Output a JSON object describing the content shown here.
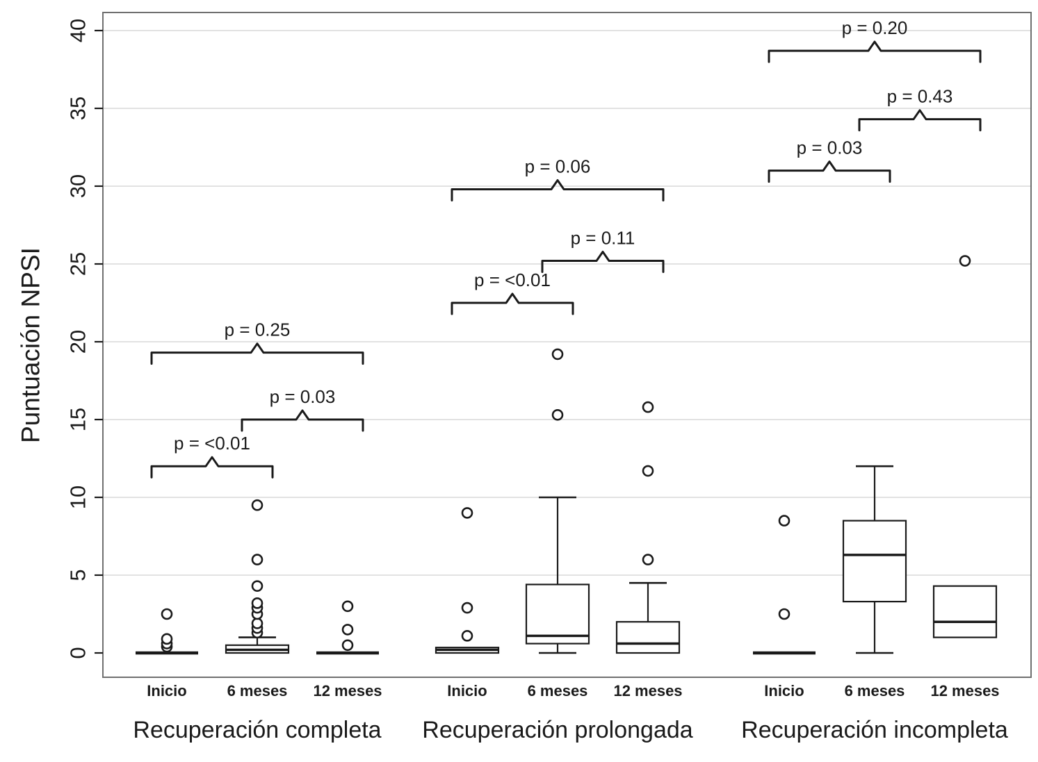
{
  "figure": {
    "ylabel": "Puntuación NPSI"
  },
  "chart_data": {
    "type": "boxplot",
    "title": "",
    "xlabel": "",
    "ylabel": "Puntuación NPSI",
    "ylim": [
      0,
      40
    ],
    "yticks": [
      "0",
      "5",
      "10",
      "15",
      "20",
      "25",
      "30",
      "35",
      "40"
    ],
    "grid": true,
    "legend": "none",
    "groups": [
      {
        "label": "Recuperación completa",
        "boxes": [
          {
            "timepoint": "Inicio",
            "q1": 0,
            "median": 0,
            "q3": 0,
            "whisker_low": 0,
            "whisker_high": 0,
            "outliers": [
              0.4,
              0.6,
              0.9,
              2.5
            ]
          },
          {
            "timepoint": "6 meses",
            "q1": 0,
            "median": 0.2,
            "q3": 0.5,
            "whisker_low": 0,
            "whisker_high": 1.0,
            "outliers": [
              1.3,
              1.6,
              1.9,
              2.5,
              2.9,
              3.2,
              4.3,
              6.0,
              9.5
            ]
          },
          {
            "timepoint": "12 meses",
            "q1": 0,
            "median": 0,
            "q3": 0,
            "whisker_low": 0,
            "whisker_high": 0,
            "outliers": [
              0.5,
              1.5,
              3.0
            ]
          }
        ],
        "comparisons": [
          {
            "label": "p = <0.01",
            "from": 0,
            "to": 1,
            "y": 12.0
          },
          {
            "label": "p = 0.03",
            "from": 1,
            "to": 2,
            "y": 15.0
          },
          {
            "label": "p = 0.25",
            "from": 0,
            "to": 2,
            "y": 19.3
          }
        ]
      },
      {
        "label": "Recuperación prolongada",
        "boxes": [
          {
            "timepoint": "Inicio",
            "q1": 0,
            "median": 0.2,
            "q3": 0.35,
            "whisker_low": 0,
            "whisker_high": 0.35,
            "outliers": [
              1.1,
              2.9,
              9.0
            ]
          },
          {
            "timepoint": "6 meses",
            "q1": 0.6,
            "median": 1.1,
            "q3": 4.4,
            "whisker_low": 0,
            "whisker_high": 10.0,
            "outliers": [
              15.3,
              19.2
            ]
          },
          {
            "timepoint": "12 meses",
            "q1": 0,
            "median": 0.6,
            "q3": 2.0,
            "whisker_low": 0,
            "whisker_high": 4.5,
            "outliers": [
              6.0,
              11.7,
              15.8
            ]
          }
        ],
        "comparisons": [
          {
            "label": "p = <0.01",
            "from": 0,
            "to": 1,
            "y": 22.5
          },
          {
            "label": "p = 0.11",
            "from": 1,
            "to": 2,
            "y": 25.2
          },
          {
            "label": "p = 0.06",
            "from": 0,
            "to": 2,
            "y": 29.8
          }
        ]
      },
      {
        "label": "Recuperación incompleta",
        "boxes": [
          {
            "timepoint": "Inicio",
            "q1": 0,
            "median": 0,
            "q3": 0,
            "whisker_low": 0,
            "whisker_high": 0,
            "outliers": [
              2.5,
              8.5
            ]
          },
          {
            "timepoint": "6 meses",
            "q1": 3.3,
            "median": 6.3,
            "q3": 8.5,
            "whisker_low": 0,
            "whisker_high": 12.0,
            "outliers": []
          },
          {
            "timepoint": "12 meses",
            "q1": 1.0,
            "median": 2.0,
            "q3": 4.3,
            "whisker_low": 1.0,
            "whisker_high": 4.3,
            "outliers": [
              25.2
            ]
          }
        ],
        "comparisons": [
          {
            "label": "p = 0.03",
            "from": 0,
            "to": 1,
            "y": 31.0
          },
          {
            "label": "p = 0.43",
            "from": 1,
            "to": 2,
            "y": 34.3
          },
          {
            "label": "p = 0.20",
            "from": 0,
            "to": 2,
            "y": 38.7
          }
        ]
      }
    ]
  }
}
